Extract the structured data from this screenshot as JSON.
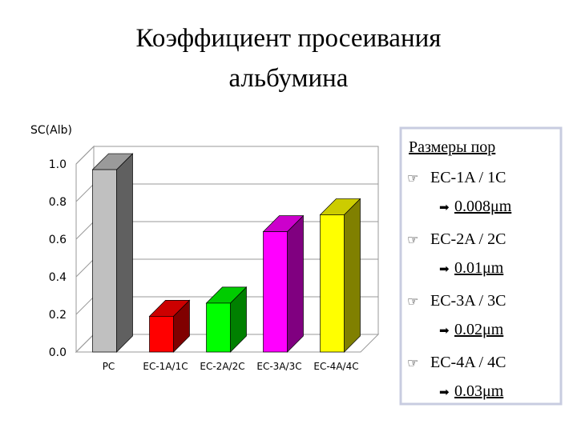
{
  "chart_data": {
    "type": "bar3d",
    "title": "Коэффициент просеивания альбумина",
    "title_lines": [
      "Коэффициент просеивания",
      "альбумина"
    ],
    "y_label": "SC(Alb)",
    "categories": [
      "PC",
      "EC-1A/1C",
      "EC-2A/2C",
      "EC-3A/3C",
      "EC-4A/4C"
    ],
    "values": [
      0.97,
      0.19,
      0.26,
      0.64,
      0.73
    ],
    "colors": [
      "#c0c0c0",
      "#ff0000",
      "#00ff00",
      "#ff00ff",
      "#ffff00"
    ],
    "ylim": [
      0,
      1
    ],
    "yticks": [
      {
        "value": 0,
        "label": "0.0"
      },
      0.2,
      0.4,
      0.6,
      0.8,
      {
        "value": 1,
        "label": "1.0"
      }
    ],
    "grid": true
  },
  "pore_sizes": {
    "title": "Размеры пор",
    "items": [
      {
        "label": "EC-1A / 1C",
        "size": "0.008μm"
      },
      {
        "label": "EC-2A / 2C",
        "size": "0.01μm"
      },
      {
        "label": "EC-3A / 3C",
        "size": "0.02μm"
      },
      {
        "label": "EC-4A / 4C",
        "size": "0.03μm"
      }
    ]
  }
}
